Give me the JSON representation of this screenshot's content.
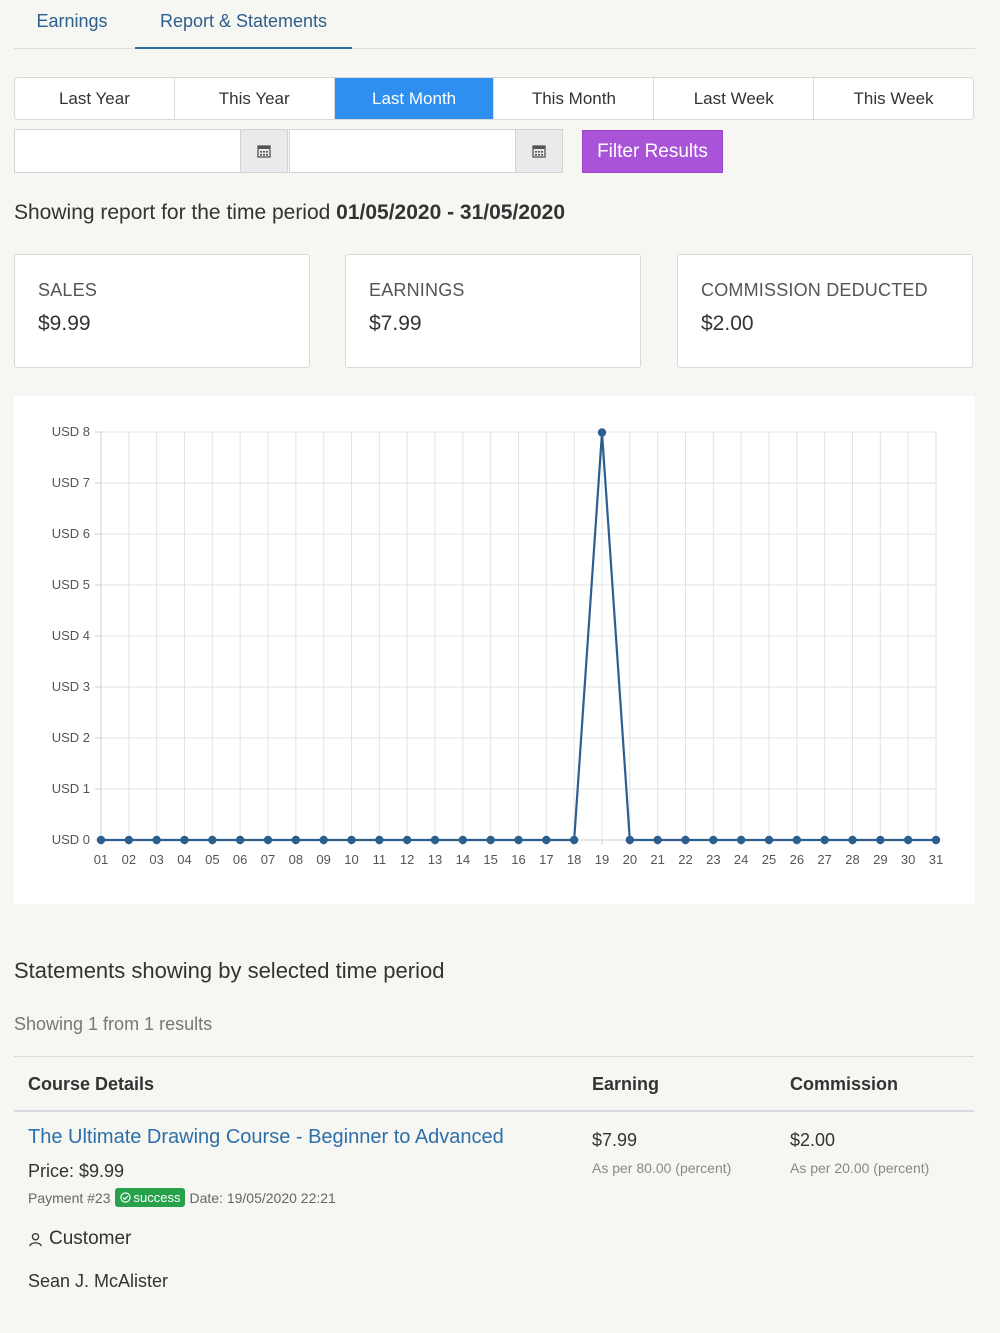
{
  "tabs": {
    "earnings": "Earnings",
    "report": "Report & Statements"
  },
  "periods": [
    "Last Year",
    "This Year",
    "Last Month",
    "This Month",
    "Last Week",
    "This Week"
  ],
  "active_period": "Last Month",
  "filter": {
    "start_value": "",
    "end_value": "",
    "button": "Filter Results",
    "calendar_icon": "calendar-icon"
  },
  "period_text": {
    "prefix": "Showing report for the time period ",
    "range": "01/05/2020 - 31/05/2020"
  },
  "stats": [
    {
      "label": "SALES",
      "value": "$9.99"
    },
    {
      "label": "EARNINGS",
      "value": "$7.99"
    },
    {
      "label": "COMMISSION DEDUCTED",
      "value": "$2.00"
    }
  ],
  "chart_data": {
    "type": "line",
    "x": [
      "01",
      "02",
      "03",
      "04",
      "05",
      "06",
      "07",
      "08",
      "09",
      "10",
      "11",
      "12",
      "13",
      "14",
      "15",
      "16",
      "17",
      "18",
      "19",
      "20",
      "21",
      "22",
      "23",
      "24",
      "25",
      "26",
      "27",
      "28",
      "29",
      "30",
      "31"
    ],
    "series": [
      {
        "values": [
          0,
          0,
          0,
          0,
          0,
          0,
          0,
          0,
          0,
          0,
          0,
          0,
          0,
          0,
          0,
          0,
          0,
          0,
          7.99,
          0,
          0,
          0,
          0,
          0,
          0,
          0,
          0,
          0,
          0,
          0,
          0
        ]
      }
    ],
    "ylim": [
      0,
      8
    ],
    "yticks": [
      "USD 0",
      "USD 1",
      "USD 2",
      "USD 3",
      "USD 4",
      "USD 5",
      "USD 6",
      "USD 7",
      "USD 8"
    ],
    "color": "#2c5f8e",
    "grid": true
  },
  "statements": {
    "title": "Statements showing by selected time period",
    "count_text": "Showing 1 from 1 results",
    "headers": {
      "course": "Course Details",
      "earning": "Earning",
      "commission": "Commission"
    },
    "rows": [
      {
        "course": "The Ultimate Drawing Course - Beginner to Advanced",
        "price": "Price: $9.99",
        "payment": "Payment #23",
        "status": "success",
        "date": "Date: 19/05/2020 22:21",
        "customer_label": "Customer",
        "customer_name": "Sean J. McAlister",
        "earning": "$7.99",
        "earning_note": "As per 80.00 (percent)",
        "commission": "$2.00",
        "commission_note": "As per 20.00 (percent)"
      }
    ]
  }
}
